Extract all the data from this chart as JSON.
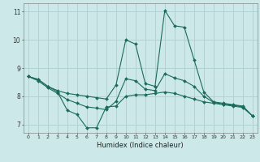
{
  "xlabel": "Humidex (Indice chaleur)",
  "xlim": [
    -0.5,
    23.5
  ],
  "ylim": [
    6.7,
    11.3
  ],
  "yticks": [
    7,
    8,
    9,
    10,
    11
  ],
  "xticks": [
    0,
    1,
    2,
    3,
    4,
    5,
    6,
    7,
    8,
    9,
    10,
    11,
    12,
    13,
    14,
    15,
    16,
    17,
    18,
    19,
    20,
    21,
    22,
    23
  ],
  "bg_color": "#cce8e8",
  "grid_color": "#aad0d0",
  "line_color": "#1a6b5a",
  "line_high_x": [
    0,
    1,
    2,
    3,
    4,
    5,
    6,
    7,
    8,
    9,
    10,
    11,
    12,
    13,
    14,
    15,
    16,
    17,
    18,
    19,
    20,
    21,
    22,
    23
  ],
  "line_high_y": [
    8.7,
    8.6,
    8.35,
    8.2,
    8.1,
    8.05,
    8.0,
    7.95,
    7.9,
    8.4,
    10.0,
    9.85,
    8.45,
    8.35,
    11.05,
    10.5,
    10.45,
    9.3,
    8.15,
    7.8,
    7.75,
    7.7,
    7.65,
    7.3
  ],
  "line_low_x": [
    0,
    1,
    2,
    3,
    4,
    5,
    6,
    7,
    8,
    9,
    10,
    11,
    12,
    13,
    14,
    15,
    16,
    17,
    18,
    19,
    20,
    21,
    22,
    23
  ],
  "line_low_y": [
    8.7,
    8.6,
    8.35,
    8.15,
    7.5,
    7.35,
    6.88,
    6.88,
    7.62,
    7.65,
    8.0,
    8.05,
    8.05,
    8.1,
    8.15,
    8.1,
    8.0,
    7.9,
    7.8,
    7.75,
    7.7,
    7.65,
    7.6,
    7.3
  ],
  "line_mid_x": [
    0,
    1,
    2,
    3,
    4,
    5,
    6,
    7,
    8,
    9,
    10,
    11,
    12,
    13,
    14,
    15,
    16,
    17,
    18,
    19,
    20,
    21,
    22,
    23
  ],
  "line_mid_y": [
    8.7,
    8.55,
    8.3,
    8.1,
    7.88,
    7.75,
    7.62,
    7.58,
    7.52,
    7.82,
    8.62,
    8.55,
    8.25,
    8.2,
    8.8,
    8.65,
    8.55,
    8.35,
    8.0,
    7.78,
    7.72,
    7.68,
    7.62,
    7.3
  ]
}
